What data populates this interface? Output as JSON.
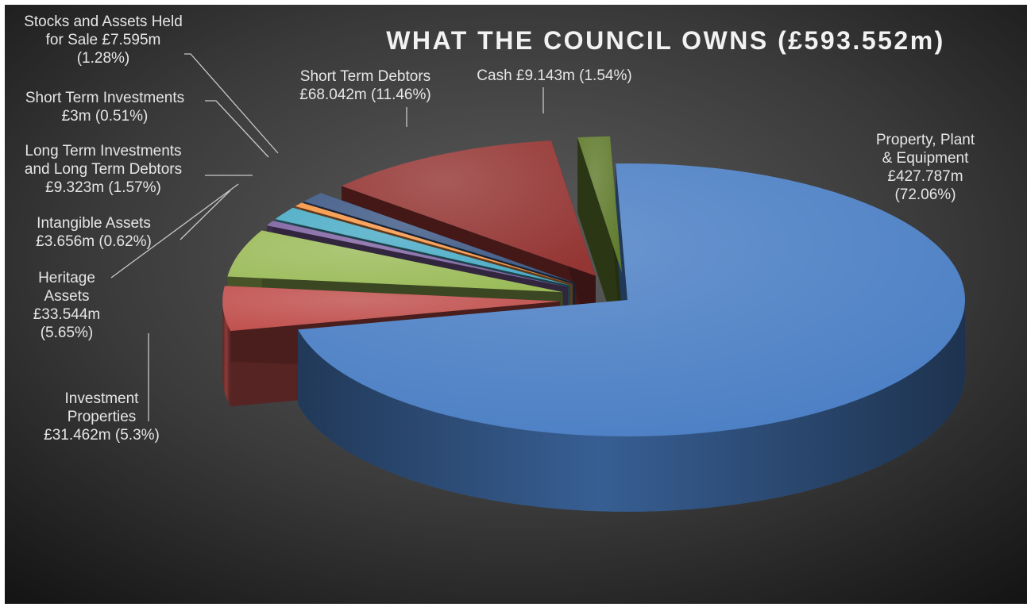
{
  "chart_data": {
    "type": "pie",
    "title": "WHAT THE COUNCIL OWNS (£593.552m)",
    "unit": "£m",
    "slices": [
      {
        "name": "Property, Plant & Equipment",
        "value": 427.787,
        "percent": 72.06,
        "color": "#4a7ec4",
        "label_lines": [
          "Property, Plant",
          "& Equipment",
          "£427.787m",
          "(72.06%)"
        ]
      },
      {
        "name": "Investment Properties",
        "value": 31.462,
        "percent": 5.3,
        "color": "#c0504d",
        "label_lines": [
          "Investment",
          "Properties",
          "£31.462m (5.3%)"
        ]
      },
      {
        "name": "Heritage Assets",
        "value": 33.544,
        "percent": 5.65,
        "color": "#9bbb59",
        "label_lines": [
          "Heritage",
          "Assets",
          "£33.544m",
          "(5.65%)"
        ]
      },
      {
        "name": "Intangible Assets",
        "value": 3.656,
        "percent": 0.62,
        "color": "#8064a2",
        "label_lines": [
          "Intangible Assets",
          "£3.656m (0.62%)"
        ]
      },
      {
        "name": "Long Term Investments and Long Term Debtors",
        "value": 9.323,
        "percent": 1.57,
        "color": "#4bacc6",
        "label_lines": [
          "Long Term Investments",
          "and Long Term Debtors",
          "£9.323m (1.57%)"
        ]
      },
      {
        "name": "Short Term Investments",
        "value": 3,
        "percent": 0.51,
        "color": "#f79646",
        "label_lines": [
          "Short Term Investments",
          "£3m (0.51%)"
        ]
      },
      {
        "name": "Stocks and Assets Held for Sale",
        "value": 7.595,
        "percent": 1.28,
        "color": "#3f5a86",
        "label_lines": [
          "Stocks and Assets Held",
          "for Sale £7.595m",
          "(1.28%)"
        ]
      },
      {
        "name": "Short Term Debtors",
        "value": 68.042,
        "percent": 11.46,
        "color": "#943634",
        "label_lines": [
          "Short Term Debtors",
          "£68.042m (11.46%)"
        ]
      },
      {
        "name": "Cash",
        "value": 9.143,
        "percent": 1.54,
        "color": "#5f7a2c",
        "label_lines": [
          "Cash £9.143m (1.54%)"
        ]
      }
    ],
    "background": "dark radial gradient"
  }
}
